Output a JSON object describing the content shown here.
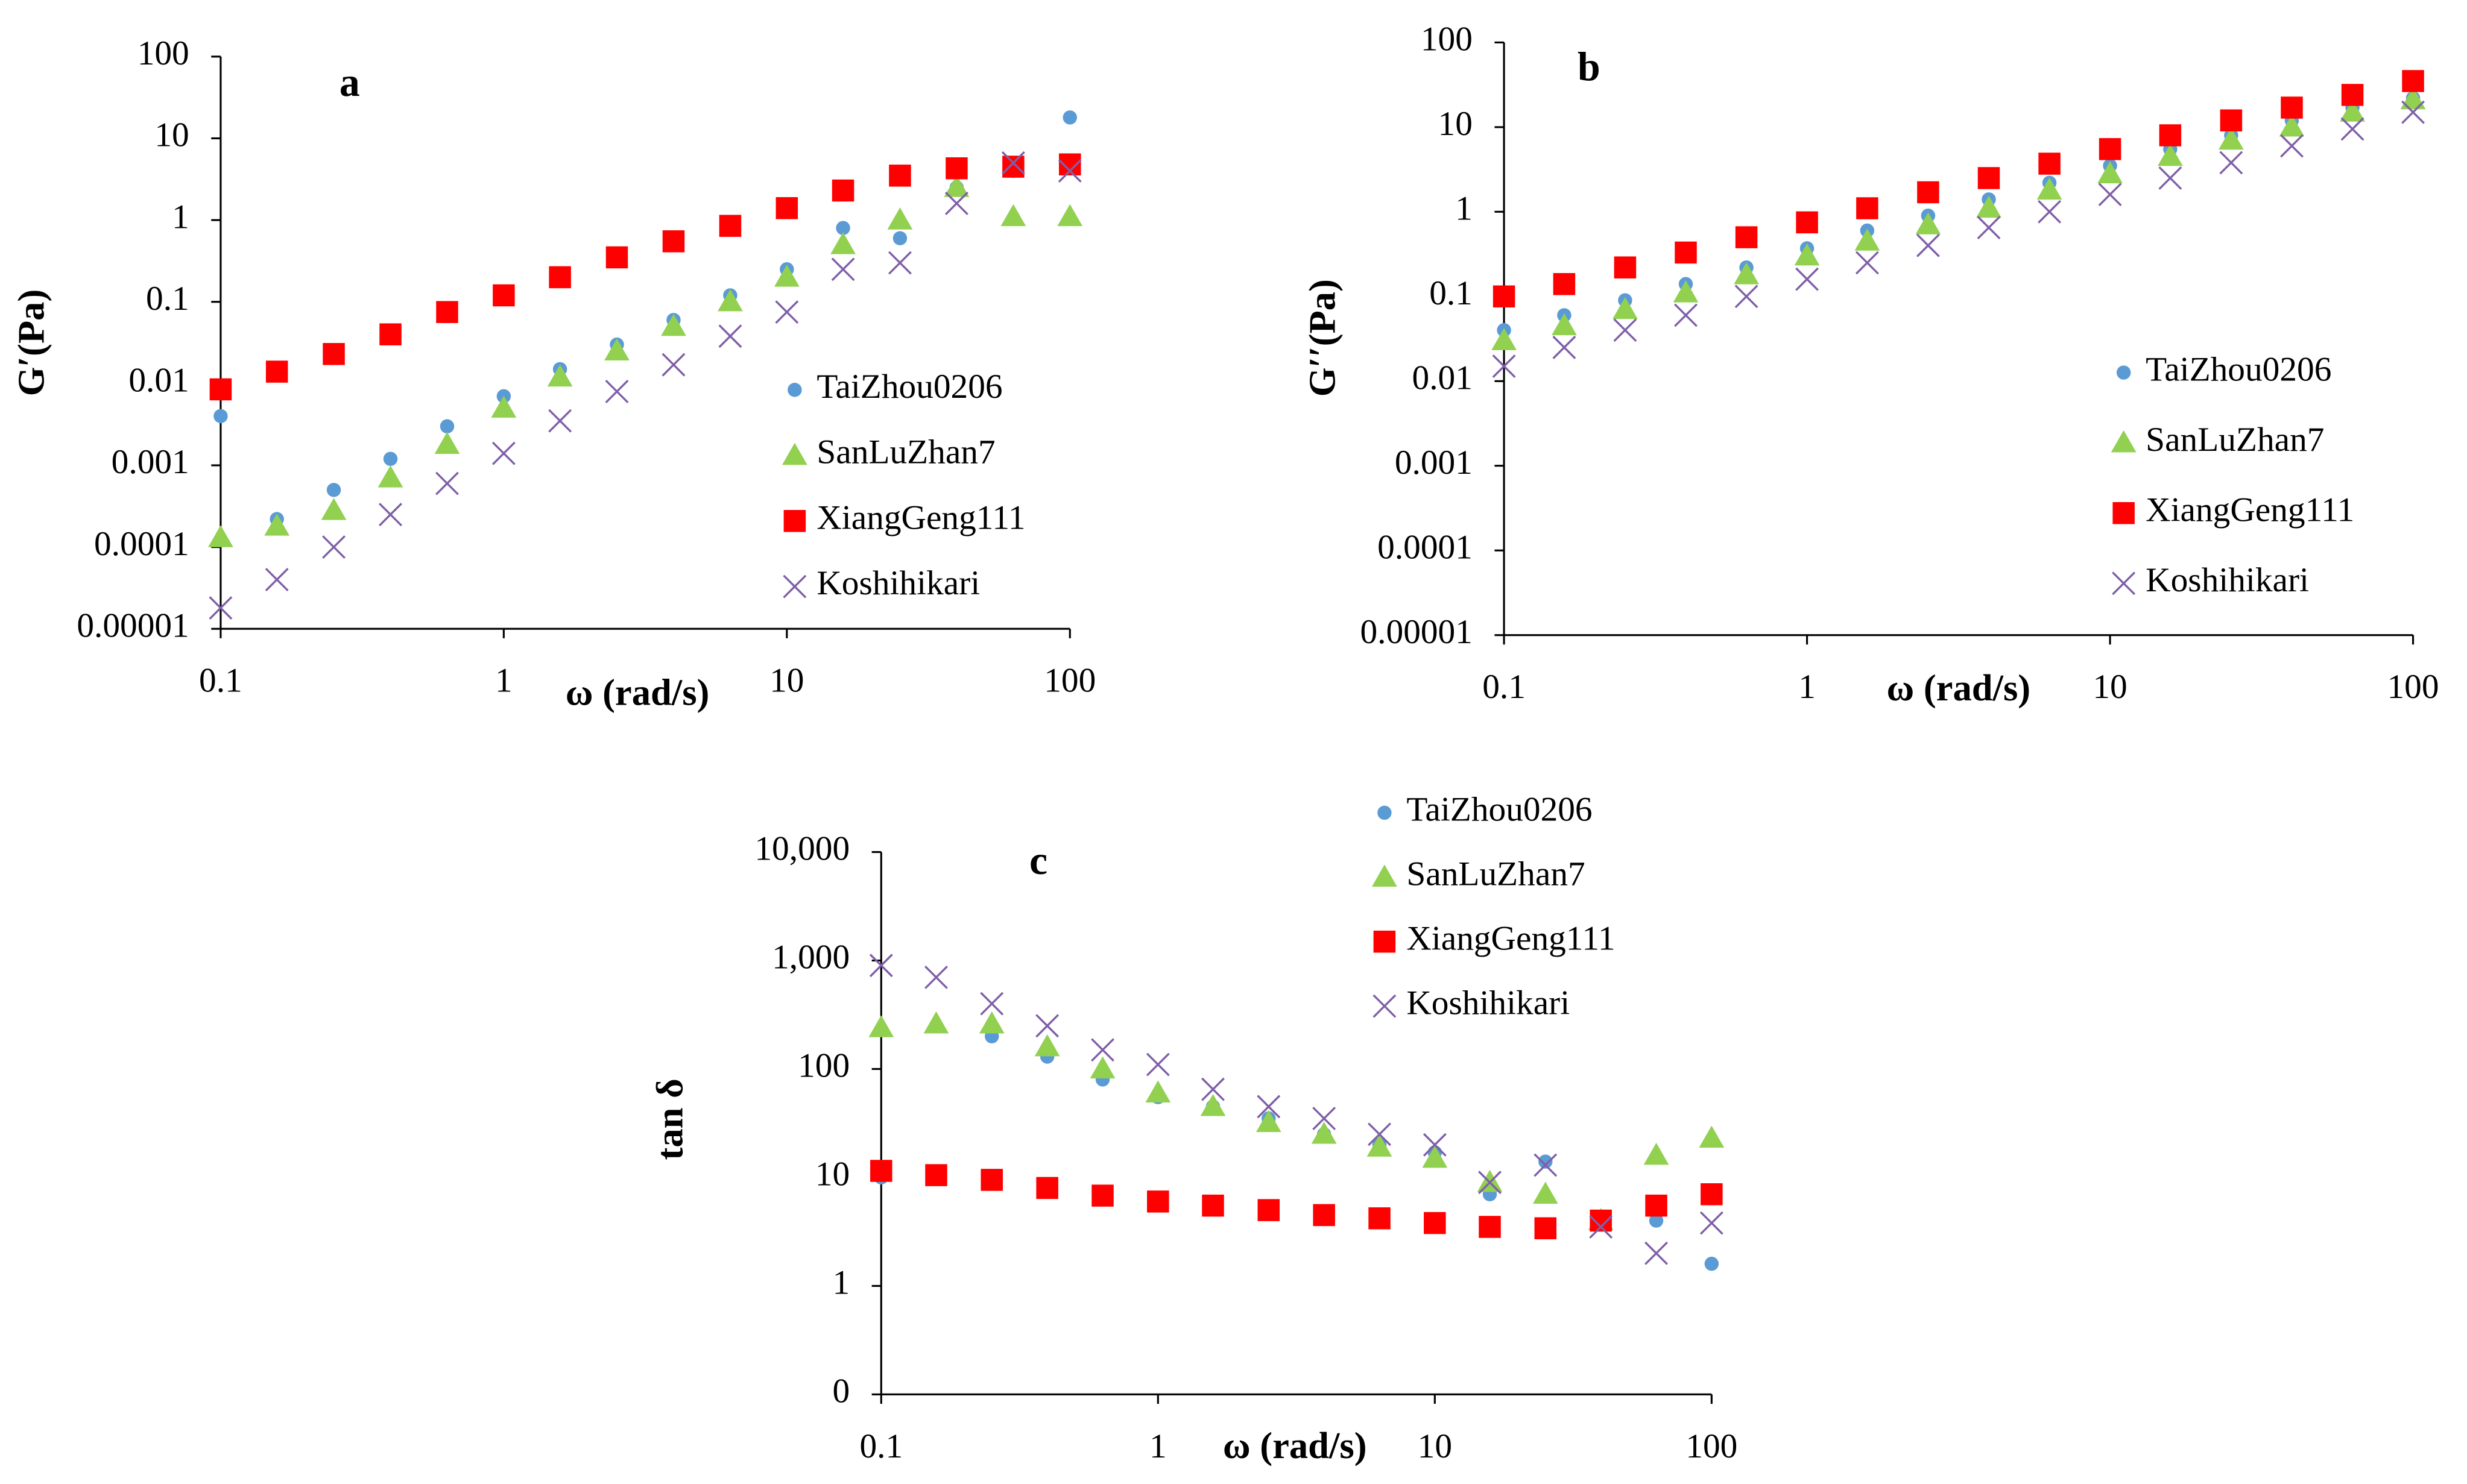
{
  "chart_data": [
    {
      "type": "scatter",
      "title": "a",
      "xlabel": "ω (rad/s)",
      "ylabel": "G′(Pa)",
      "xscale": "log",
      "yscale": "log",
      "x": [
        0.1,
        0.158,
        0.251,
        0.398,
        0.631,
        1,
        1.58,
        2.51,
        3.98,
        6.31,
        10,
        15.8,
        25.1,
        39.8,
        63.1,
        100
      ],
      "xlim": [
        0.1,
        100
      ],
      "xticks": [
        0.1,
        1,
        10,
        100
      ],
      "ylim": [
        1e-05,
        100
      ],
      "yticks": [
        1e-05,
        0.0001,
        0.001,
        0.01,
        0.1,
        1,
        10,
        100
      ],
      "series": [
        {
          "name": "TaiZhou0206",
          "color": "#5b9bd5",
          "marker": "circle",
          "values": [
            0.004,
            0.00022,
            0.0005,
            0.0012,
            0.003,
            0.007,
            0.015,
            0.03,
            0.06,
            0.12,
            0.25,
            0.8,
            0.6,
            2.5,
            4,
            18
          ]
        },
        {
          "name": "SanLuZhan7",
          "color": "#92d050",
          "marker": "triangle",
          "values": [
            0.00013,
            0.00018,
            0.00028,
            0.0007,
            0.0018,
            0.005,
            0.012,
            0.025,
            0.05,
            0.1,
            0.2,
            0.5,
            1.0,
            2.5,
            1.1,
            1.1
          ]
        },
        {
          "name": "XiangGeng111",
          "color": "#ff0000",
          "marker": "square",
          "values": [
            0.0085,
            0.014,
            0.023,
            0.04,
            0.075,
            0.12,
            0.2,
            0.35,
            0.55,
            0.85,
            1.4,
            2.3,
            3.5,
            4.3,
            4.5,
            4.8
          ]
        },
        {
          "name": "Koshihikari",
          "color": "#7f5fa8",
          "marker": "x",
          "values": [
            1.8e-05,
            4e-05,
            0.0001,
            0.00025,
            0.0006,
            0.0014,
            0.0035,
            0.008,
            0.017,
            0.038,
            0.075,
            0.25,
            0.3,
            1.6,
            5,
            4
          ]
        }
      ]
    },
    {
      "type": "scatter",
      "title": "b",
      "xlabel": "ω (rad/s)",
      "ylabel": "G′′(Pa)",
      "xscale": "log",
      "yscale": "log",
      "x": [
        0.1,
        0.158,
        0.251,
        0.398,
        0.631,
        1,
        1.58,
        2.51,
        3.98,
        6.31,
        10,
        15.8,
        25.1,
        39.8,
        63.1,
        100
      ],
      "xlim": [
        0.1,
        100
      ],
      "xticks": [
        0.1,
        1,
        10,
        100
      ],
      "ylim": [
        1e-05,
        100
      ],
      "yticks": [
        1e-05,
        0.0001,
        0.001,
        0.01,
        0.1,
        1,
        10,
        100
      ],
      "series": [
        {
          "name": "TaiZhou0206",
          "color": "#5b9bd5",
          "marker": "circle",
          "values": [
            0.04,
            0.06,
            0.09,
            0.14,
            0.22,
            0.37,
            0.6,
            0.9,
            1.4,
            2.2,
            3.5,
            5.5,
            8,
            12,
            17,
            22
          ]
        },
        {
          "name": "SanLuZhan7",
          "color": "#92d050",
          "marker": "triangle",
          "values": [
            0.03,
            0.045,
            0.07,
            0.11,
            0.18,
            0.3,
            0.45,
            0.7,
            1.1,
            1.8,
            2.8,
            4.5,
            7,
            10,
            15,
            21
          ]
        },
        {
          "name": "XiangGeng111",
          "color": "#ff0000",
          "marker": "square",
          "values": [
            0.1,
            0.14,
            0.22,
            0.33,
            0.5,
            0.75,
            1.1,
            1.7,
            2.5,
            3.7,
            5.5,
            8,
            12,
            17,
            24,
            35
          ]
        },
        {
          "name": "Koshihikari",
          "color": "#7f5fa8",
          "marker": "x",
          "values": [
            0.015,
            0.025,
            0.04,
            0.06,
            0.1,
            0.16,
            0.25,
            0.4,
            0.65,
            1.0,
            1.6,
            2.5,
            3.8,
            6,
            9.5,
            15
          ]
        }
      ]
    },
    {
      "type": "scatter",
      "title": "c",
      "xlabel": "ω (rad/s)",
      "ylabel": "tan δ",
      "xscale": "log",
      "yscale": "log",
      "x": [
        0.1,
        0.158,
        0.251,
        0.398,
        0.631,
        1,
        1.58,
        2.51,
        3.98,
        6.31,
        10,
        15.8,
        25.1,
        39.8,
        63.1,
        100
      ],
      "xlim": [
        0.1,
        100
      ],
      "xticks": [
        0.1,
        1,
        10,
        100
      ],
      "ylim": [
        0.1,
        10000
      ],
      "yticks": [
        {
          "value": 0.1,
          "label": "0"
        },
        1,
        10,
        100,
        {
          "value": 1000,
          "label": "1,000"
        },
        {
          "value": 10000,
          "label": "10,000"
        }
      ],
      "series": [
        {
          "name": "TaiZhou0206",
          "color": "#5b9bd5",
          "marker": "circle",
          "values": [
            10,
            10.5,
            200,
            130,
            80,
            55,
            45,
            35,
            25,
            20,
            17,
            7,
            14,
            4,
            4,
            1.6
          ]
        },
        {
          "name": "SanLuZhan7",
          "color": "#92d050",
          "marker": "triangle",
          "values": [
            240,
            260,
            260,
            160,
            100,
            60,
            45,
            32,
            25,
            19,
            15,
            9,
            7,
            4,
            16,
            23
          ]
        },
        {
          "name": "XiangGeng111",
          "color": "#ff0000",
          "marker": "square",
          "values": [
            11.5,
            10.5,
            9.5,
            8,
            6.8,
            6,
            5.5,
            5,
            4.5,
            4.2,
            3.8,
            3.5,
            3.4,
            4,
            5.5,
            7
          ]
        },
        {
          "name": "Koshihikari",
          "color": "#7f5fa8",
          "marker": "x",
          "values": [
            900,
            700,
            400,
            250,
            150,
            110,
            65,
            45,
            35,
            25,
            20,
            9,
            13,
            3.5,
            2,
            3.8
          ]
        }
      ]
    }
  ]
}
